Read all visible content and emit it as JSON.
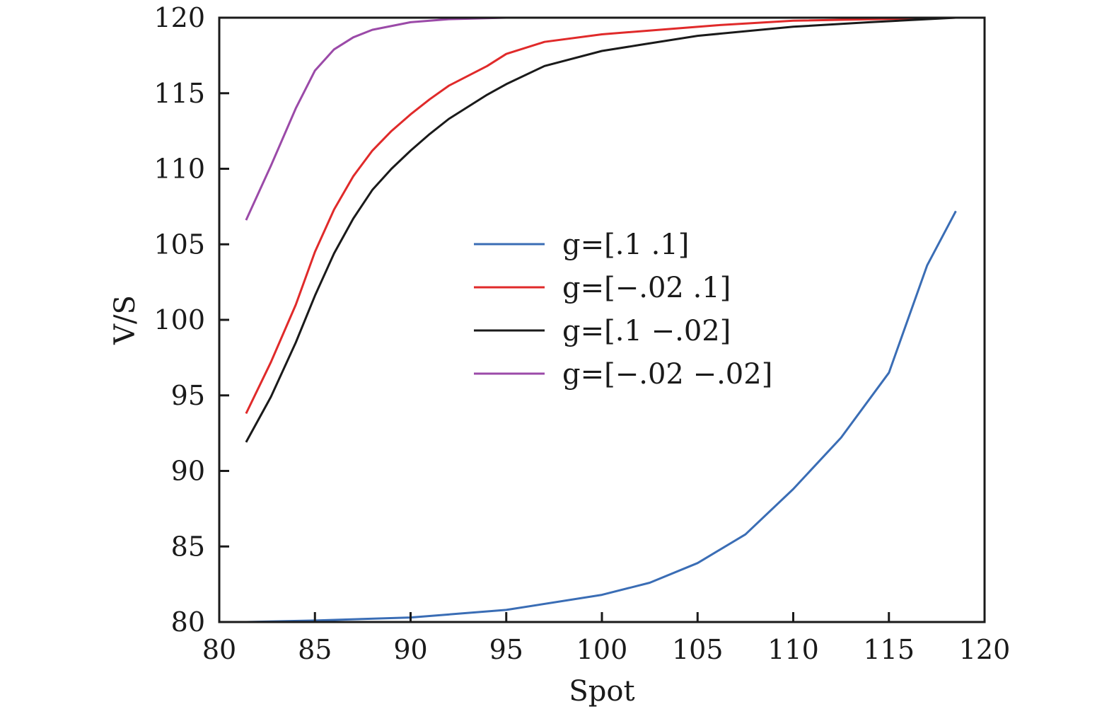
{
  "chart_data": {
    "type": "line",
    "title": "",
    "xlabel": "Spot",
    "ylabel": "V/S",
    "xlim": [
      80,
      120
    ],
    "ylim": [
      80,
      120
    ],
    "xticks": [
      80,
      85,
      90,
      95,
      100,
      105,
      110,
      115,
      120
    ],
    "yticks": [
      80,
      85,
      90,
      95,
      100,
      105,
      110,
      115,
      120
    ],
    "grid": false,
    "legend_position": "center",
    "series": [
      {
        "name": "g=[.1 .1]",
        "color": "#3a6db5",
        "x": [
          81.4,
          85,
          90,
          95,
          100,
          102.5,
          105,
          107.5,
          110,
          112.5,
          115,
          117,
          118.5
        ],
        "y": [
          80.0,
          80.1,
          80.3,
          80.8,
          81.8,
          82.6,
          83.9,
          85.8,
          88.8,
          92.2,
          96.5,
          103.6,
          107.2
        ]
      },
      {
        "name": "g=[−.02 .1]",
        "color": "#e02a2a",
        "x": [
          81.4,
          82.7,
          84,
          85,
          86,
          87,
          88,
          89,
          90,
          91,
          92,
          94,
          95,
          97,
          100,
          103,
          106,
          110,
          118.5
        ],
        "y": [
          93.8,
          97.2,
          101.0,
          104.5,
          107.3,
          109.5,
          111.2,
          112.5,
          113.6,
          114.6,
          115.5,
          116.8,
          117.6,
          118.4,
          118.9,
          119.2,
          119.5,
          119.8,
          120.0
        ]
      },
      {
        "name": "g=[.1 −.02]",
        "color": "#1a1a1a",
        "x": [
          81.4,
          82.7,
          84,
          85,
          86,
          87,
          88,
          89,
          90,
          91,
          92,
          94,
          95,
          97,
          100,
          102,
          105,
          110,
          114,
          118.5
        ],
        "y": [
          91.9,
          94.9,
          98.5,
          101.6,
          104.4,
          106.7,
          108.6,
          110.0,
          111.2,
          112.3,
          113.3,
          114.9,
          115.6,
          116.8,
          117.8,
          118.2,
          118.8,
          119.4,
          119.7,
          120.0
        ]
      },
      {
        "name": "g=[−.02 −.02]",
        "color": "#9b4aa8",
        "x": [
          81.4,
          82.7,
          84,
          85,
          86,
          87,
          88,
          90,
          92,
          95,
          118.5
        ],
        "y": [
          106.6,
          110.2,
          114.0,
          116.5,
          117.9,
          118.7,
          119.2,
          119.7,
          119.9,
          120.0,
          120.0
        ]
      }
    ]
  }
}
